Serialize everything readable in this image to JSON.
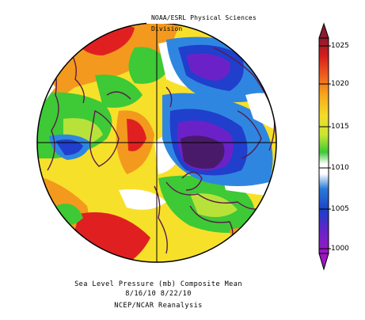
{
  "credit": "NOAA/ESRL Physical Sciences Division",
  "caption": {
    "line1": "Sea Level Pressure (mb) Composite Mean",
    "line2": "8/16/10 8/22/10",
    "line3": "NCEP/NCAR Reanalysis"
  },
  "colorbar": {
    "ticks": [
      "1025",
      "1020",
      "1015",
      "1010",
      "1005",
      "1000"
    ],
    "colors": [
      "#8b1a2e",
      "#d41c1c",
      "#f05a1e",
      "#f7a51c",
      "#f5dc28",
      "#c8e632",
      "#3ec936",
      "#ffffff",
      "#2a7bd8",
      "#1c3fc9",
      "#6a22c8",
      "#9c18c2"
    ]
  },
  "map": {
    "projection": "north-polar-stereographic",
    "field": "sea-level-pressure-mb",
    "palette": {
      "high_red": "#e02020",
      "orange": "#f39a1e",
      "yellow": "#f7e02a",
      "lime": "#b8e23a",
      "green": "#3ec936",
      "white": "#ffffff",
      "light_blue": "#2f86e0",
      "blue": "#1f3fcc",
      "purple": "#6a22c8",
      "low_purple": "#4a1a6a",
      "coast": "#5c1a4a"
    }
  }
}
